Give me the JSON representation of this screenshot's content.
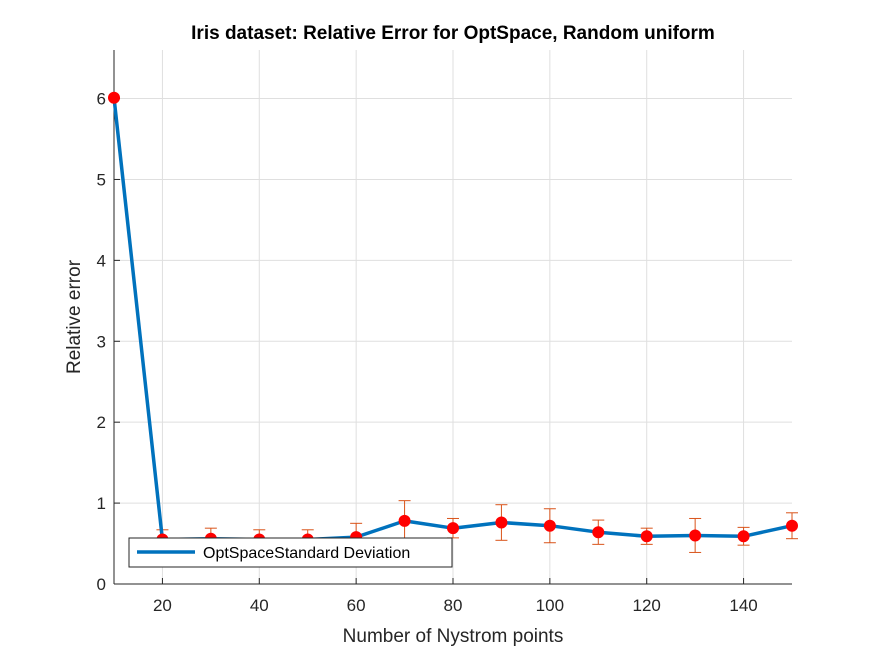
{
  "chart_data": {
    "type": "line",
    "title": "Iris dataset: Relative Error for OptSpace, Random uniform",
    "xlabel": "Number of Nystrom points",
    "ylabel": "Relative error",
    "xlim": [
      10,
      150
    ],
    "ylim": [
      0,
      6.6
    ],
    "xticks": [
      20,
      40,
      60,
      80,
      100,
      120,
      140
    ],
    "yticks": [
      0,
      1,
      2,
      3,
      4,
      5,
      6
    ],
    "grid": true,
    "legend_position": "bottom-left",
    "legend": [
      "OptSpaceStandard Deviation"
    ],
    "series": [
      {
        "name": "OptSpaceStandard Deviation",
        "color": "#0072BD",
        "marker_color": "#FF0000",
        "errorbar_color": "#D95319",
        "x": [
          10,
          20,
          30,
          40,
          50,
          60,
          70,
          80,
          90,
          100,
          110,
          120,
          130,
          140,
          150
        ],
        "y": [
          6.01,
          0.55,
          0.56,
          0.55,
          0.55,
          0.58,
          0.78,
          0.69,
          0.76,
          0.72,
          0.64,
          0.59,
          0.6,
          0.59,
          0.72
        ],
        "error": [
          0.0,
          0.12,
          0.13,
          0.12,
          0.12,
          0.17,
          0.25,
          0.12,
          0.22,
          0.21,
          0.15,
          0.1,
          0.21,
          0.11,
          0.16
        ]
      }
    ]
  }
}
